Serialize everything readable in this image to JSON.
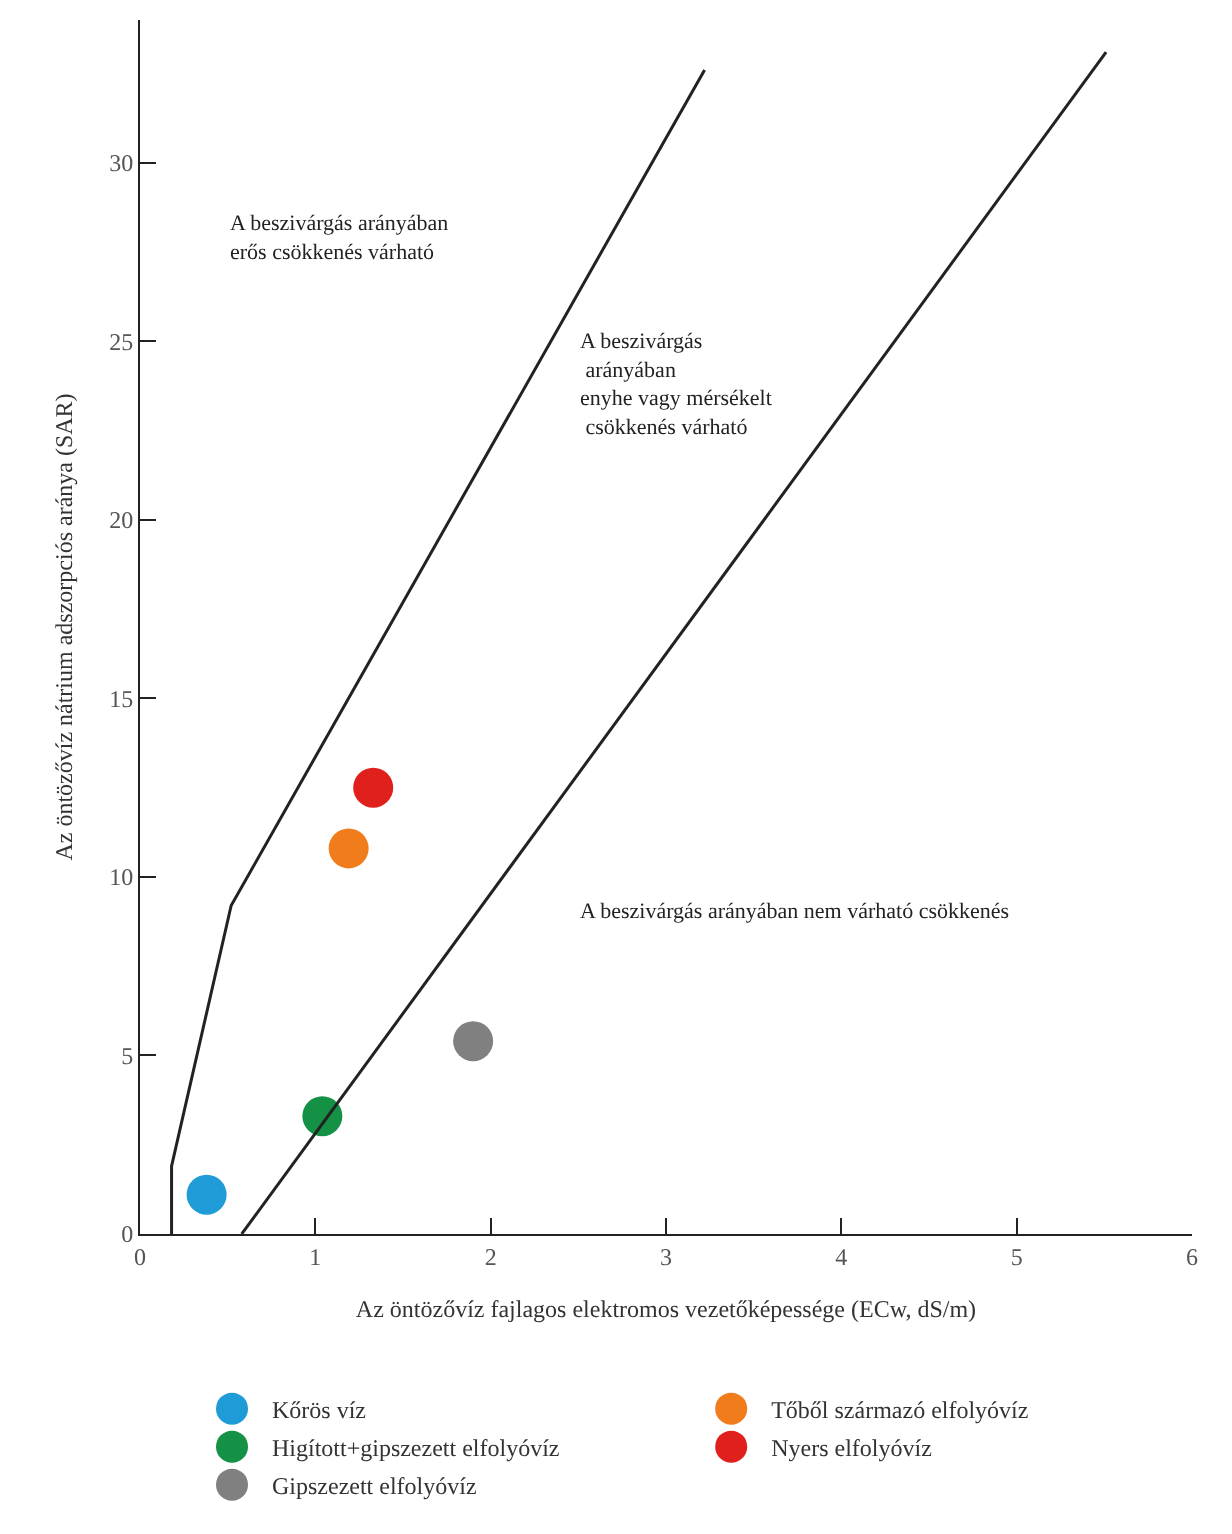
{
  "chart_data": {
    "type": "scatter",
    "xlabel": "Az öntözővíz fajlagos elektromos vezetőképessége (ECw, dS/m)",
    "ylabel": "Az öntözővíz nátrium adszorpciós aránya (SAR)",
    "xlim": [
      0,
      6
    ],
    "ylim": [
      0,
      34
    ],
    "xticks": [
      0,
      1,
      2,
      3,
      4,
      5,
      6
    ],
    "yticks": [
      0,
      5,
      10,
      15,
      20,
      25,
      30
    ],
    "legend": "bottom",
    "marker": "circle",
    "series": [
      {
        "name": "Kőrös víz",
        "color": "#1f9bd7",
        "x": [
          0.38
        ],
        "values": [
          1.1
        ]
      },
      {
        "name": "Tőből származó elfolyóvíz",
        "color": "#f07c1b",
        "x": [
          1.19
        ],
        "values": [
          10.8
        ]
      },
      {
        "name": "Higított+gipszezett elfolyóvíz",
        "color": "#149145",
        "x": [
          1.04
        ],
        "values": [
          3.3
        ]
      },
      {
        "name": "Nyers elfolyóvíz",
        "color": "#e0201c",
        "x": [
          1.33
        ],
        "values": [
          12.5
        ]
      },
      {
        "name": "Gipszezett elfolyóvíz",
        "color": "#808080",
        "x": [
          1.9
        ],
        "values": [
          5.4
        ]
      },
      {
        "type": "line",
        "color": "#222222",
        "marker": "none",
        "x": [
          0.18,
          0.18,
          0.52,
          3.22
        ],
        "values": [
          0,
          1.9,
          9.2,
          32.6
        ]
      },
      {
        "type": "line",
        "color": "#222222",
        "marker": "none",
        "x": [
          0.58,
          5.51
        ],
        "values": [
          0,
          33.1
        ]
      }
    ],
    "annotations": [
      "A beszivárgás arányában\nerős csökkenés várható",
      "A beszivárgás\n arányában\nenyhe vagy mérsékelt\n csökkenés várható",
      "A beszivárgás arányában nem várható csökkenés"
    ]
  }
}
